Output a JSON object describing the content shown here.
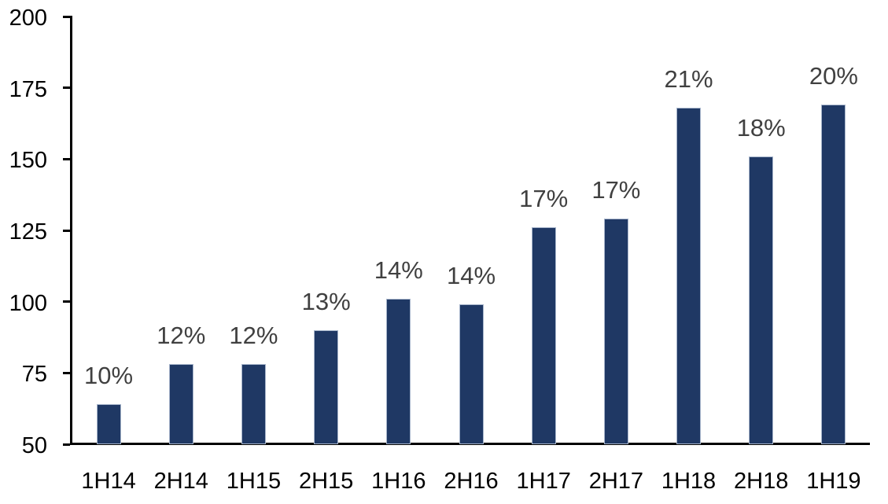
{
  "chart_data": {
    "type": "bar",
    "title": "",
    "xlabel": "",
    "ylabel": "",
    "categories": [
      "1H14",
      "2H14",
      "1H15",
      "2H15",
      "1H16",
      "2H16",
      "1H17",
      "2H17",
      "1H18",
      "2H18",
      "1H19"
    ],
    "values": [
      64,
      78,
      78,
      90,
      101,
      99,
      126,
      129,
      168,
      151,
      169
    ],
    "point_labels": [
      "10%",
      "12%",
      "12%",
      "13%",
      "14%",
      "14%",
      "17%",
      "17%",
      "21%",
      "18%",
      "20%"
    ],
    "ylim": [
      50,
      200
    ],
    "yticks": [
      50,
      75,
      100,
      125,
      150,
      175,
      200
    ],
    "grid": false,
    "legend": "none",
    "colors": {
      "bar_fill": "#1F3864",
      "bar_border": "#A7B5CB",
      "data_label": "#404040",
      "axis_line": "#000000",
      "tick_label": "#000000",
      "background": "#FFFFFF"
    }
  }
}
